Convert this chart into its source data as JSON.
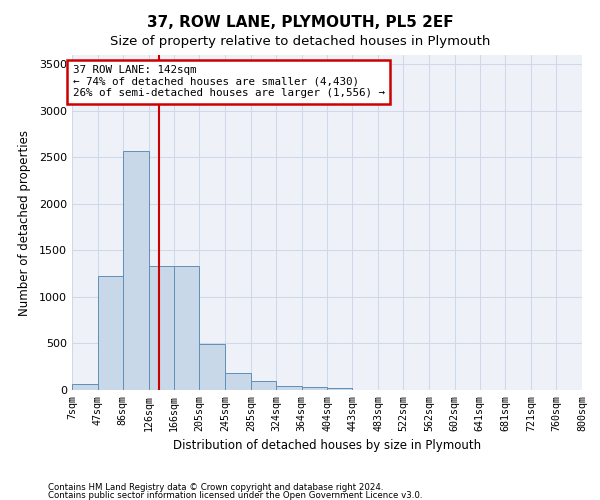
{
  "title": "37, ROW LANE, PLYMOUTH, PL5 2EF",
  "subtitle": "Size of property relative to detached houses in Plymouth",
  "xlabel": "Distribution of detached houses by size in Plymouth",
  "ylabel": "Number of detached properties",
  "bar_color": "#c8d8e8",
  "bar_edge_color": "#6090b8",
  "grid_color": "#d0d8ea",
  "background_color": "#eef2f8",
  "bin_edges": [
    7,
    47,
    86,
    126,
    166,
    205,
    245,
    285,
    324,
    364,
    404,
    443,
    483,
    522,
    562,
    602,
    641,
    681,
    721,
    760,
    800
  ],
  "bin_labels": [
    "7sqm",
    "47sqm",
    "86sqm",
    "126sqm",
    "166sqm",
    "205sqm",
    "245sqm",
    "285sqm",
    "324sqm",
    "364sqm",
    "404sqm",
    "443sqm",
    "483sqm",
    "522sqm",
    "562sqm",
    "602sqm",
    "641sqm",
    "681sqm",
    "721sqm",
    "760sqm",
    "800sqm"
  ],
  "bar_heights": [
    60,
    1220,
    2570,
    1330,
    1330,
    490,
    185,
    100,
    45,
    30,
    20,
    5,
    0,
    0,
    0,
    0,
    0,
    0,
    0,
    0
  ],
  "property_size": 142,
  "annotation_line1": "37 ROW LANE: 142sqm",
  "annotation_line2": "← 74% of detached houses are smaller (4,430)",
  "annotation_line3": "26% of semi-detached houses are larger (1,556) →",
  "red_line_color": "#cc0000",
  "ylim": [
    0,
    3600
  ],
  "yticks": [
    0,
    500,
    1000,
    1500,
    2000,
    2500,
    3000,
    3500
  ],
  "footer1": "Contains HM Land Registry data © Crown copyright and database right 2024.",
  "footer2": "Contains public sector information licensed under the Open Government Licence v3.0."
}
